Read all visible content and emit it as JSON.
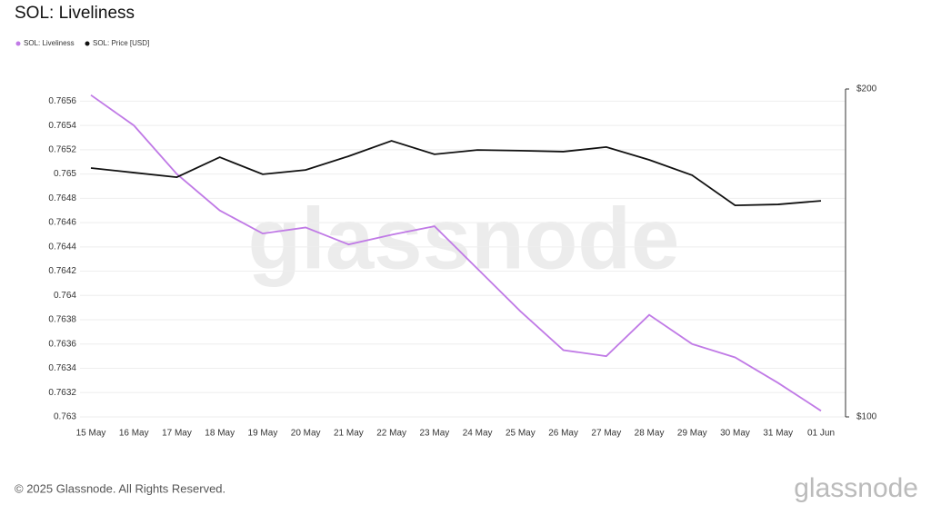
{
  "chart_data": {
    "type": "line",
    "title": "SOL: Liveliness",
    "categories": [
      "15 May",
      "16 May",
      "17 May",
      "18 May",
      "19 May",
      "20 May",
      "21 May",
      "22 May",
      "23 May",
      "24 May",
      "25 May",
      "26 May",
      "27 May",
      "28 May",
      "29 May",
      "30 May",
      "31 May",
      "01 Jun"
    ],
    "series": [
      {
        "name": "SOL: Liveliness",
        "color": "#c07ae6",
        "values": [
          0.76565,
          0.7654,
          0.765,
          0.7647,
          0.76451,
          0.76456,
          0.76442,
          0.7645,
          0.76457,
          0.76422,
          0.76387,
          0.76355,
          0.7635,
          0.76384,
          0.7636,
          0.76349,
          0.76328,
          0.76305
        ]
      },
      {
        "name": "SOL: Price [USD]",
        "color": "#111111",
        "axis": "y2",
        "values": [
          175.9,
          174.5,
          173.1,
          179.2,
          174.0,
          175.3,
          179.5,
          184.2,
          180.1,
          181.4,
          181.2,
          180.9,
          182.3,
          178.4,
          173.7,
          164.5,
          164.8,
          165.9
        ]
      }
    ],
    "ylim": [
      0.763,
      0.7657
    ],
    "yticks": [
      0.763,
      0.7632,
      0.7634,
      0.7636,
      0.7638,
      0.764,
      0.7642,
      0.7644,
      0.7646,
      0.7648,
      0.765,
      0.7652,
      0.7654,
      0.7656
    ],
    "y2lim": [
      100,
      200
    ],
    "y2ticks": [
      {
        "value": 100,
        "label": "$100"
      },
      {
        "value": 200,
        "label": "$200"
      }
    ],
    "grid": true
  },
  "watermark": "glassnode",
  "footer": "© 2025 Glassnode. All Rights Reserved.",
  "logo": "glassnode"
}
